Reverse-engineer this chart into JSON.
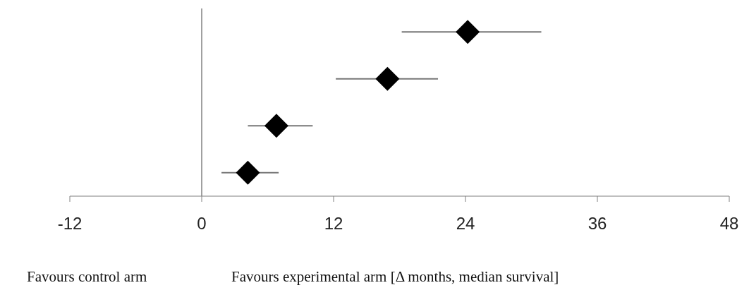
{
  "chart_data": {
    "type": "scatter",
    "orientation": "horizontal",
    "categories": [
      null,
      null,
      null,
      null
    ],
    "values": [
      24.2,
      16.9,
      6.8,
      4.2
    ],
    "errors": [
      [
        18.2,
        30.9
      ],
      [
        12.2,
        21.5
      ],
      [
        4.2,
        10.1
      ],
      [
        1.8,
        7.0
      ]
    ],
    "color": "#000000",
    "marker": "diamond",
    "xlim": [
      -12,
      48
    ],
    "xticks": [
      -12,
      0,
      12,
      24,
      36,
      48
    ],
    "ref_lines": [
      {
        "axis": "x",
        "value": 0,
        "color": "#808080"
      }
    ],
    "annotations": [
      "Favours control arm",
      "Favours experimental arm [Δ months, median survival]"
    ]
  }
}
